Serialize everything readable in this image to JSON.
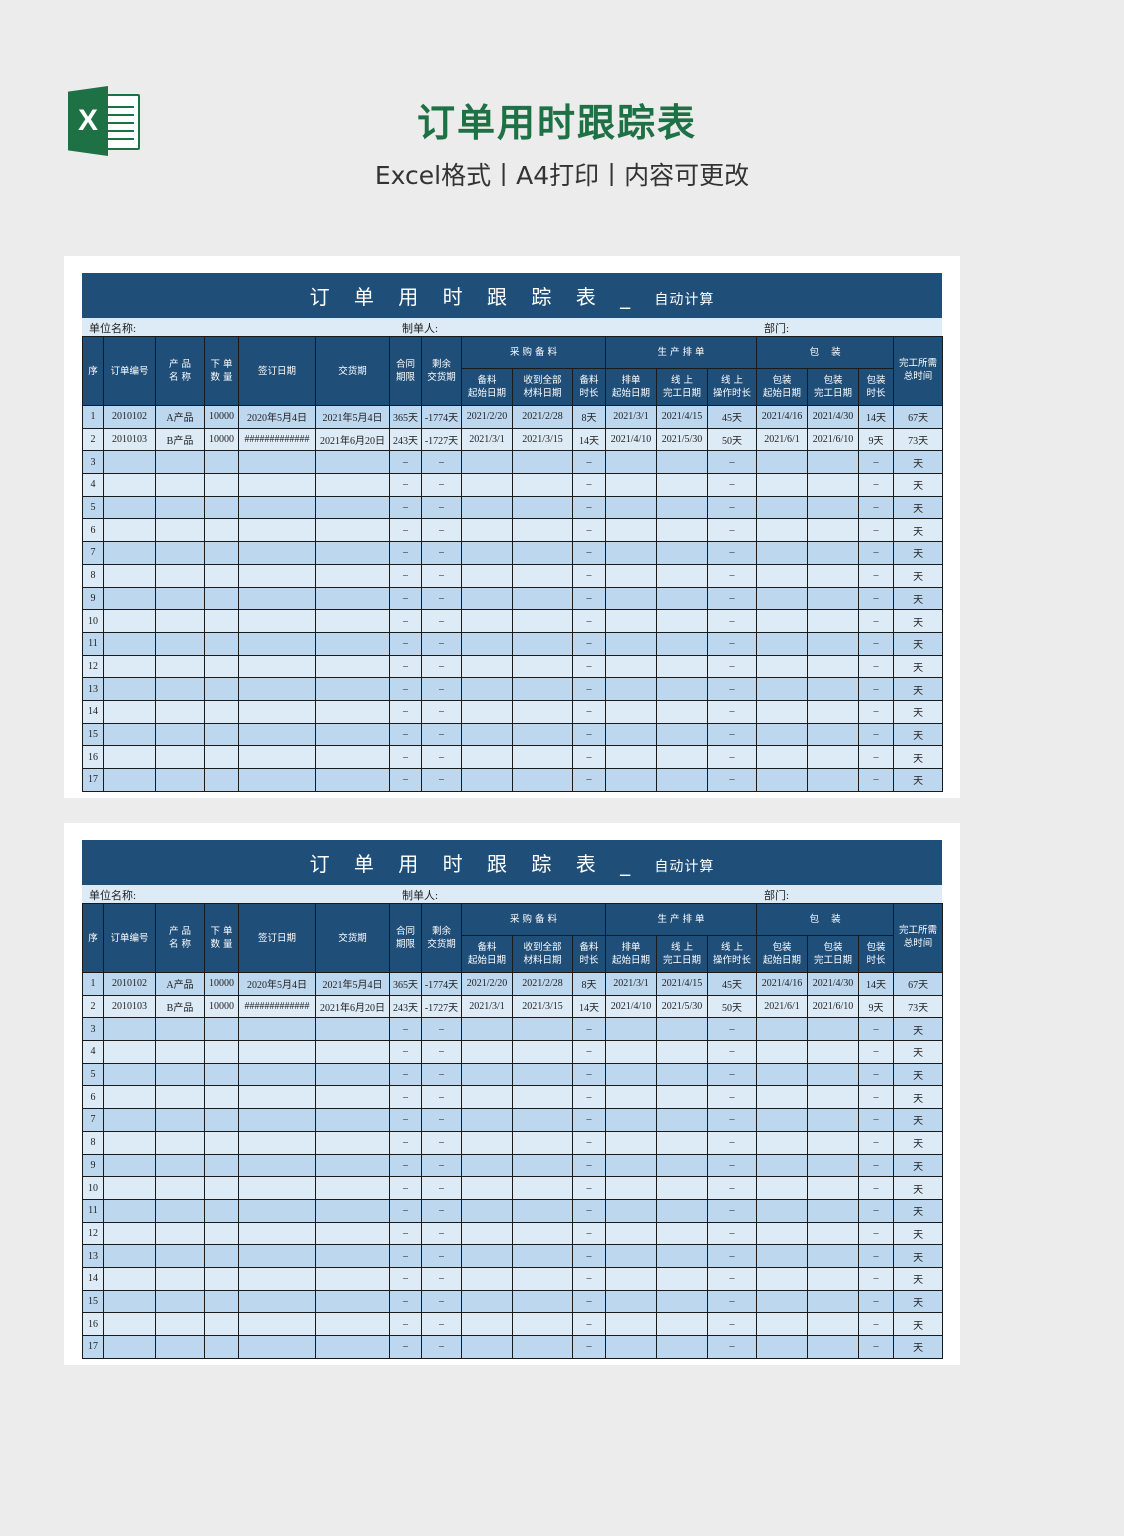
{
  "header": {
    "logo_letter": "X",
    "title": "订单用时跟踪表",
    "subtitle": "Excel格式丨A4打印丨内容可更改"
  },
  "colors": {
    "brand": "#1e7145",
    "table_header": "#1f4e79",
    "row_dark": "#bdd7ee",
    "row_light": "#ddebf7"
  },
  "sheet": {
    "title": "订 单 用 时 跟 踪 表 _ ",
    "title_suffix": "自动计算",
    "unit_label": "单位名称:",
    "maker_label": "制单人:",
    "dept_label": "部门:",
    "columns": {
      "seq": "序",
      "order_no": "订单编号",
      "product": "产 品\n名 称",
      "qty": "下 单\n数 量",
      "sign_date": "签订日期",
      "delivery": "交货期",
      "contract": "合同\n期限",
      "remaining": "剩余\n交货期",
      "group_purchase": "采 购 备 料",
      "group_production": "生 产 排 单",
      "group_packing": "包    装",
      "total": "完工所需\n总时间",
      "sub": [
        "备料\n起始日期",
        "收到全部\n材料日期",
        "备料\n时长",
        "排单\n起始日期",
        "线 上\n完工日期",
        "线 上\n操作时长",
        "包装\n起始日期",
        "包装\n完工日期",
        "包装\n时长"
      ]
    },
    "rows": [
      [
        "1",
        "2010102",
        "A产品",
        "10000",
        "2020年5月4日",
        "2021年5月4日",
        "365天",
        "-1774天",
        "2021/2/20",
        "2021/2/28",
        "8天",
        "2021/3/1",
        "2021/4/15",
        "45天",
        "2021/4/16",
        "2021/4/30",
        "14天",
        "67天"
      ],
      [
        "2",
        "2010103",
        "B产品",
        "10000",
        "#############",
        "2021年6月20日",
        "243天",
        "-1727天",
        "2021/3/1",
        "2021/3/15",
        "14天",
        "2021/4/10",
        "2021/5/30",
        "50天",
        "2021/6/1",
        "2021/6/10",
        "9天",
        "73天"
      ],
      [
        "3",
        "",
        "",
        "",
        "",
        "",
        "–",
        "–",
        "",
        "",
        "–",
        "",
        "",
        "–",
        "",
        "",
        "–",
        "天"
      ],
      [
        "4",
        "",
        "",
        "",
        "",
        "",
        "–",
        "–",
        "",
        "",
        "–",
        "",
        "",
        "–",
        "",
        "",
        "–",
        "天"
      ],
      [
        "5",
        "",
        "",
        "",
        "",
        "",
        "–",
        "–",
        "",
        "",
        "–",
        "",
        "",
        "–",
        "",
        "",
        "–",
        "天"
      ],
      [
        "6",
        "",
        "",
        "",
        "",
        "",
        "–",
        "–",
        "",
        "",
        "–",
        "",
        "",
        "–",
        "",
        "",
        "–",
        "天"
      ],
      [
        "7",
        "",
        "",
        "",
        "",
        "",
        "–",
        "–",
        "",
        "",
        "–",
        "",
        "",
        "–",
        "",
        "",
        "–",
        "天"
      ],
      [
        "8",
        "",
        "",
        "",
        "",
        "",
        "–",
        "–",
        "",
        "",
        "–",
        "",
        "",
        "–",
        "",
        "",
        "–",
        "天"
      ],
      [
        "9",
        "",
        "",
        "",
        "",
        "",
        "–",
        "–",
        "",
        "",
        "–",
        "",
        "",
        "–",
        "",
        "",
        "–",
        "天"
      ],
      [
        "10",
        "",
        "",
        "",
        "",
        "",
        "–",
        "–",
        "",
        "",
        "–",
        "",
        "",
        "–",
        "",
        "",
        "–",
        "天"
      ],
      [
        "11",
        "",
        "",
        "",
        "",
        "",
        "–",
        "–",
        "",
        "",
        "–",
        "",
        "",
        "–",
        "",
        "",
        "–",
        "天"
      ],
      [
        "12",
        "",
        "",
        "",
        "",
        "",
        "–",
        "–",
        "",
        "",
        "–",
        "",
        "",
        "–",
        "",
        "",
        "–",
        "天"
      ],
      [
        "13",
        "",
        "",
        "",
        "",
        "",
        "–",
        "–",
        "",
        "",
        "–",
        "",
        "",
        "–",
        "",
        "",
        "–",
        "天"
      ],
      [
        "14",
        "",
        "",
        "",
        "",
        "",
        "–",
        "–",
        "",
        "",
        "–",
        "",
        "",
        "–",
        "",
        "",
        "–",
        "天"
      ],
      [
        "15",
        "",
        "",
        "",
        "",
        "",
        "–",
        "–",
        "",
        "",
        "–",
        "",
        "",
        "–",
        "",
        "",
        "–",
        "天"
      ],
      [
        "16",
        "",
        "",
        "",
        "",
        "",
        "–",
        "–",
        "",
        "",
        "–",
        "",
        "",
        "–",
        "",
        "",
        "–",
        "天"
      ],
      [
        "17",
        "",
        "",
        "",
        "",
        "",
        "–",
        "–",
        "",
        "",
        "–",
        "",
        "",
        "–",
        "",
        "",
        "–",
        "天"
      ]
    ]
  }
}
